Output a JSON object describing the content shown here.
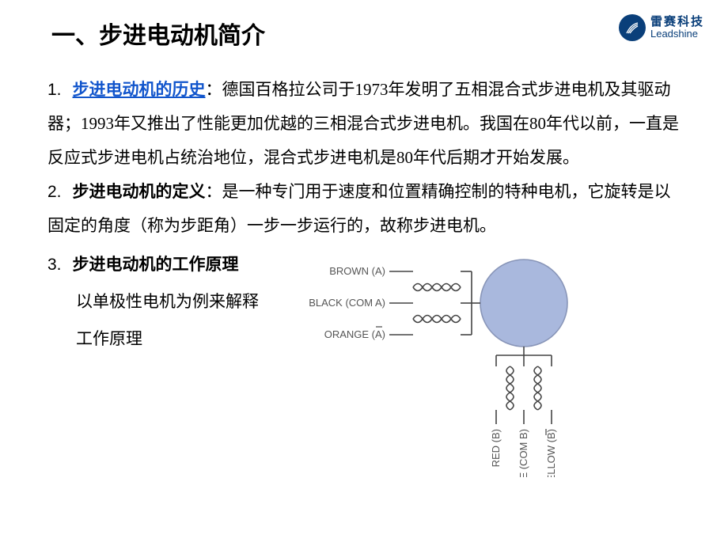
{
  "logo": {
    "cn": "雷赛科技",
    "en": "Leadshine",
    "mark_bg": "#0a3f7a",
    "text_color": "#0a3f7a"
  },
  "title": "一、步进电动机简介",
  "section1": {
    "num": "1.",
    "link": "步进电动机的历史",
    "colon": "：",
    "body": "德国百格拉公司于1973年发明了五相混合式步进电机及其驱动器；1993年又推出了性能更加优越的三相混合式步进电机。我国在80年代以前，一直是反应式步进电机占统治地位，混合式步进电机是80年代后期才开始发展。"
  },
  "section2": {
    "num": "2.",
    "term": "步进电动机的定义",
    "colon": "：",
    "body": "是一种专门用于速度和位置精确控制的特种电机，它旋转是以固定的角度（称为步距角）一步一步运行的，故称步进电机。"
  },
  "section3": {
    "num": "3.",
    "term": "步进电动机的工作原理",
    "sub1": "以单极性电机为例来解释",
    "sub2": "工作原理"
  },
  "diagram": {
    "labels": {
      "brown": "BROWN (A)",
      "black": "BLACK (COM A)",
      "orange": "ORANGE (A)",
      "red": "RED (B)",
      "white": "WHITE (COM B)",
      "yellow": "YELLOW (B)",
      "orange_bar": true,
      "yellow_bar": true
    },
    "rotor_fill": "#a9b8dd",
    "rotor_stroke": "#8895b8",
    "wire_color": "#444444",
    "label_color": "#555555"
  },
  "typography": {
    "title_fontsize": 30,
    "body_fontsize": 21,
    "diagram_label_fontsize": 13,
    "link_color": "#1155cc"
  }
}
